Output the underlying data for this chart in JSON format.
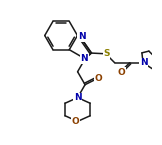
{
  "bg_color": "#ffffff",
  "line_color": "#1a1a1a",
  "n_color": "#0000aa",
  "o_color": "#8B4000",
  "s_color": "#8B8000",
  "lw": 1.1,
  "dbg": 0.012,
  "fs": 6.5,
  "xlim": [
    0.0,
    1.0
  ],
  "ylim": [
    0.0,
    1.0
  ]
}
